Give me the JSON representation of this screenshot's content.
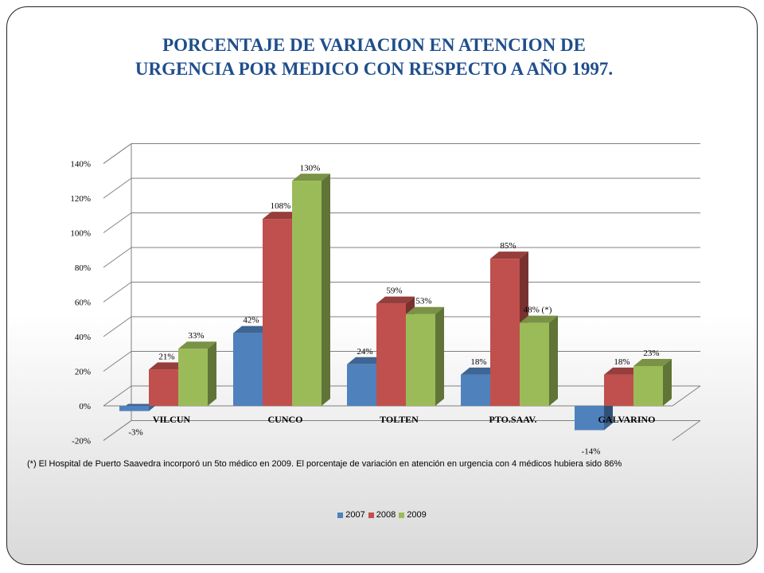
{
  "chart_data": {
    "type": "bar",
    "title": "PORCENTAJE DE VARIACION EN ATENCION DE URGENCIA POR MEDICO CON RESPECTO A AÑO 1997.",
    "title_lines": [
      "PORCENTAJE DE VARIACION EN ATENCION DE",
      "URGENCIA POR MEDICO CON RESPECTO A AÑO 1997."
    ],
    "categories": [
      "VILCUN",
      "CUNCO",
      "TOLTEN",
      "PTO.SAAV.",
      "GALVARINO"
    ],
    "series": [
      {
        "name": "2007",
        "color": "#4f81bd",
        "values": [
          -3,
          42,
          24,
          18,
          -14
        ],
        "labels": [
          "-3%",
          "42%",
          "24%",
          "18%",
          "-14%"
        ]
      },
      {
        "name": "2008",
        "color": "#c0504d",
        "values": [
          21,
          108,
          59,
          85,
          18
        ],
        "labels": [
          "21%",
          "108%",
          "59%",
          "85%",
          "18%"
        ]
      },
      {
        "name": "2009",
        "color": "#9bbb59",
        "values": [
          33,
          130,
          53,
          48,
          23
        ],
        "labels": [
          "33%",
          "130%",
          "53%",
          "48% (*)",
          "23%"
        ]
      }
    ],
    "ylim": [
      -20,
      140
    ],
    "yticks": [
      -20,
      0,
      20,
      40,
      60,
      80,
      100,
      120,
      140
    ],
    "ytick_labels": [
      "-20%",
      "0%",
      "20%",
      "40%",
      "60%",
      "80%",
      "100%",
      "120%",
      "140%"
    ],
    "grid": true,
    "legend_position": "bottom",
    "xlabel": "",
    "ylabel": ""
  },
  "footnote": "(*) El Hospital de Puerto Saavedra incorporó un 5to médico en 2009. El porcentaje  de variación en  atención en urgencia con 4 médicos hubiera sido 86%"
}
